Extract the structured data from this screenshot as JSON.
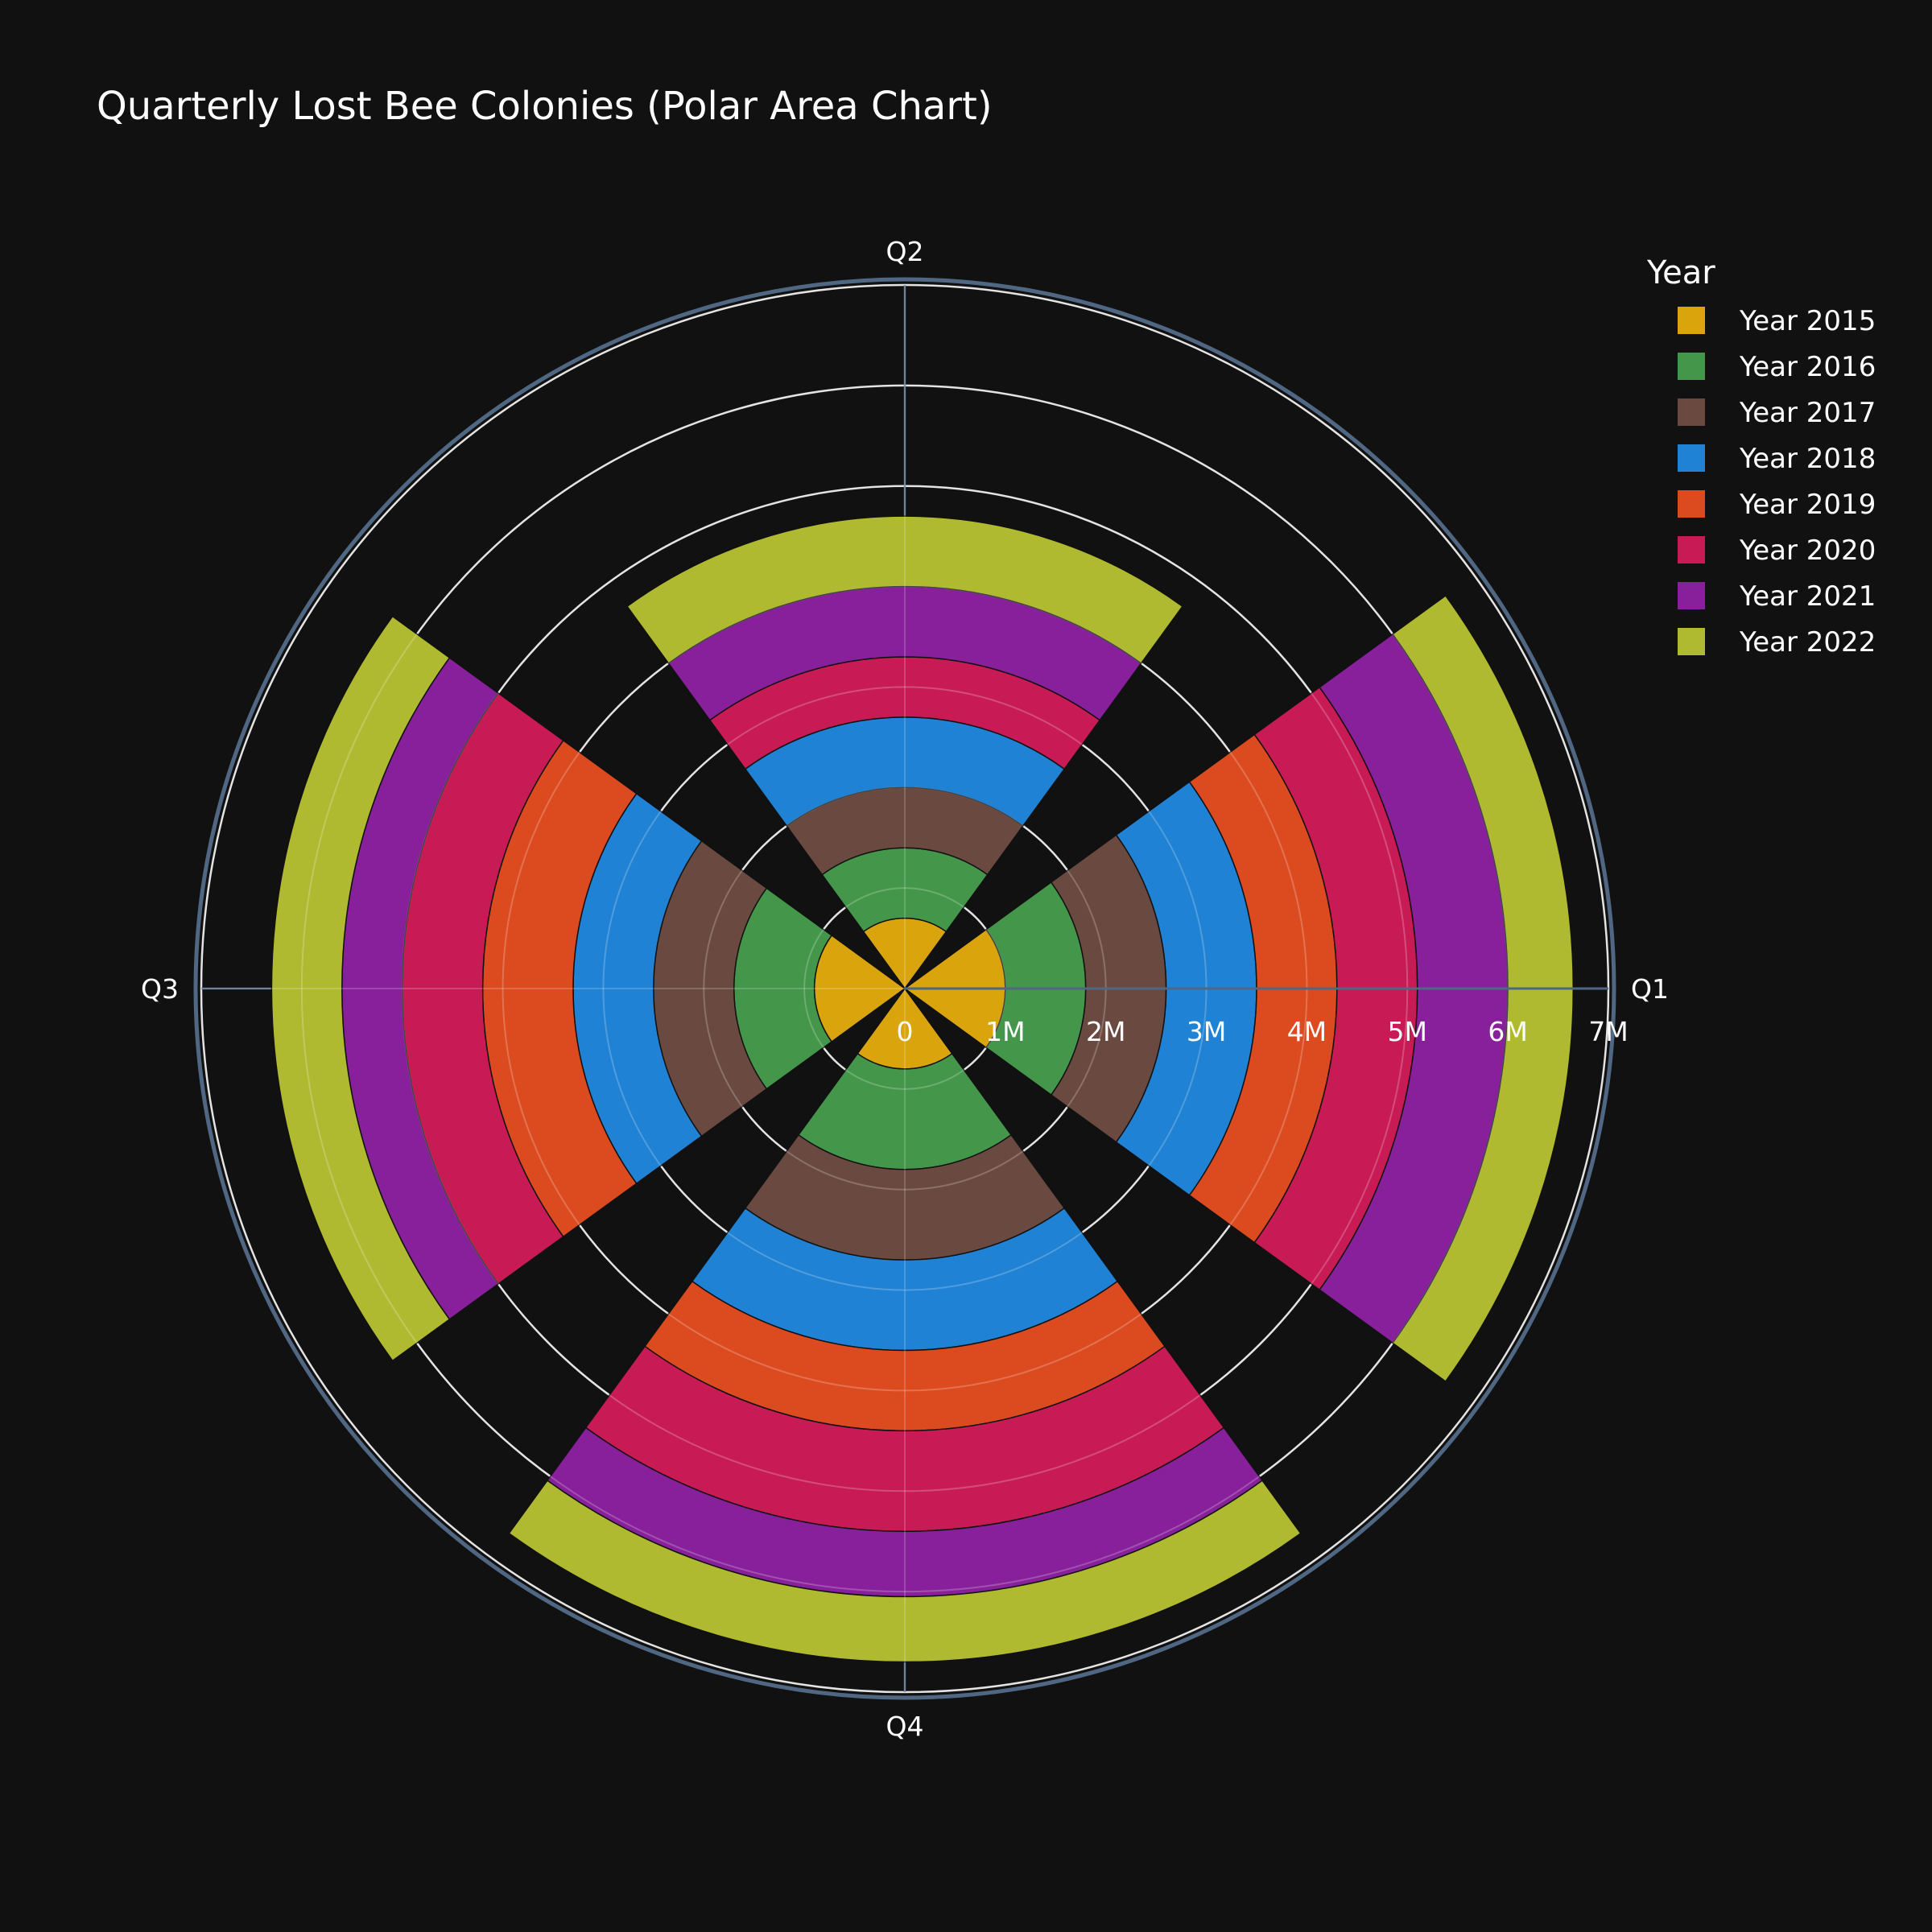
{
  "chart_data": {
    "type": "polar-bar",
    "title": "Quarterly Lost Bee Colonies (Polar Area Chart)",
    "categories": [
      "Q1",
      "Q2",
      "Q3",
      "Q4"
    ],
    "barmode": "stack",
    "radial_range": [
      0,
      7000000
    ],
    "radial_ticks": [
      0,
      1000000,
      2000000,
      3000000,
      4000000,
      5000000,
      6000000,
      7000000
    ],
    "radial_tick_labels": [
      "0",
      "1M",
      "2M",
      "3M",
      "4M",
      "5M",
      "6M",
      "7M"
    ],
    "grid": true,
    "legend": {
      "title": "Year",
      "placement": "top-right"
    },
    "series": [
      {
        "name": "Year 2015",
        "color": "#DAA50C",
        "values": [
          1000000,
          700000,
          900000,
          800000
        ]
      },
      {
        "name": "Year 2016",
        "color": "#43964A",
        "values": [
          800000,
          700000,
          800000,
          1000000
        ]
      },
      {
        "name": "Year 2017",
        "color": "#6A4A40",
        "values": [
          800000,
          600000,
          800000,
          900000
        ]
      },
      {
        "name": "Year 2018",
        "color": "#1F82D4",
        "values": [
          900000,
          700000,
          800000,
          900000
        ]
      },
      {
        "name": "Year 2019",
        "color": "#DC4B1F",
        "values": [
          800000,
          0,
          900000,
          800000
        ]
      },
      {
        "name": "Year 2020",
        "color": "#C81B55",
        "values": [
          800000,
          600000,
          800000,
          1000000
        ]
      },
      {
        "name": "Year 2021",
        "color": "#87209A",
        "values": [
          900000,
          700000,
          600000,
          650000
        ]
      },
      {
        "name": "Year 2022",
        "color": "#B0BA31",
        "values": [
          650000,
          700000,
          700000,
          650000
        ]
      }
    ]
  },
  "colors": {
    "background": "#111111",
    "grid": "#dddddd",
    "angular_axis": "#506784",
    "bar_outline": "#111111"
  }
}
